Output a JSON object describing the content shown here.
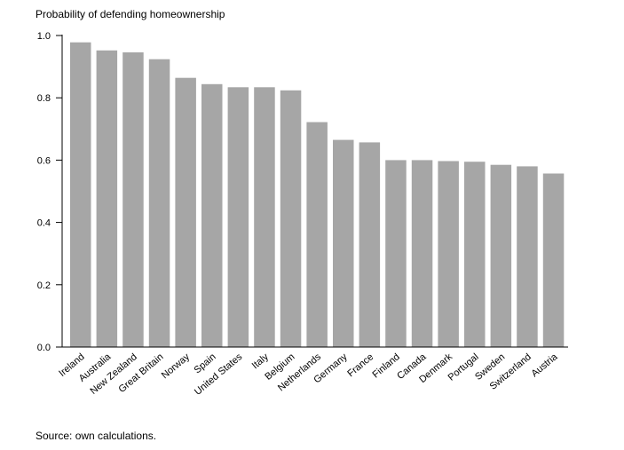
{
  "chart_data": {
    "type": "bar",
    "title": "Probability of defending homeownership",
    "xlabel": "",
    "ylabel": "",
    "categories": [
      "Ireland",
      "Australia",
      "New Zealand",
      "Great Britain",
      "Norway",
      "Spain",
      "United States",
      "Italy",
      "Belgium",
      "Netherlands",
      "Germany",
      "France",
      "Finland",
      "Canada",
      "Denmark",
      "Portugal",
      "Sweden",
      "Switzerland",
      "Austria"
    ],
    "values": [
      0.978,
      0.952,
      0.946,
      0.924,
      0.864,
      0.844,
      0.834,
      0.834,
      0.824,
      0.722,
      0.665,
      0.657,
      0.6,
      0.6,
      0.597,
      0.595,
      0.585,
      0.58,
      0.557
    ],
    "ylim": [
      0,
      1.0
    ],
    "yticks": [
      0.0,
      0.2,
      0.4,
      0.6,
      0.8,
      1.0
    ],
    "ytick_labels": [
      "0.0",
      "0.2",
      "0.4",
      "0.6",
      "0.8",
      "1.0"
    ],
    "grid": false,
    "legend": "none",
    "colors": {
      "bar": "#a6a6a6",
      "axis": "#000000"
    }
  },
  "source_note": "Source: own calculations."
}
